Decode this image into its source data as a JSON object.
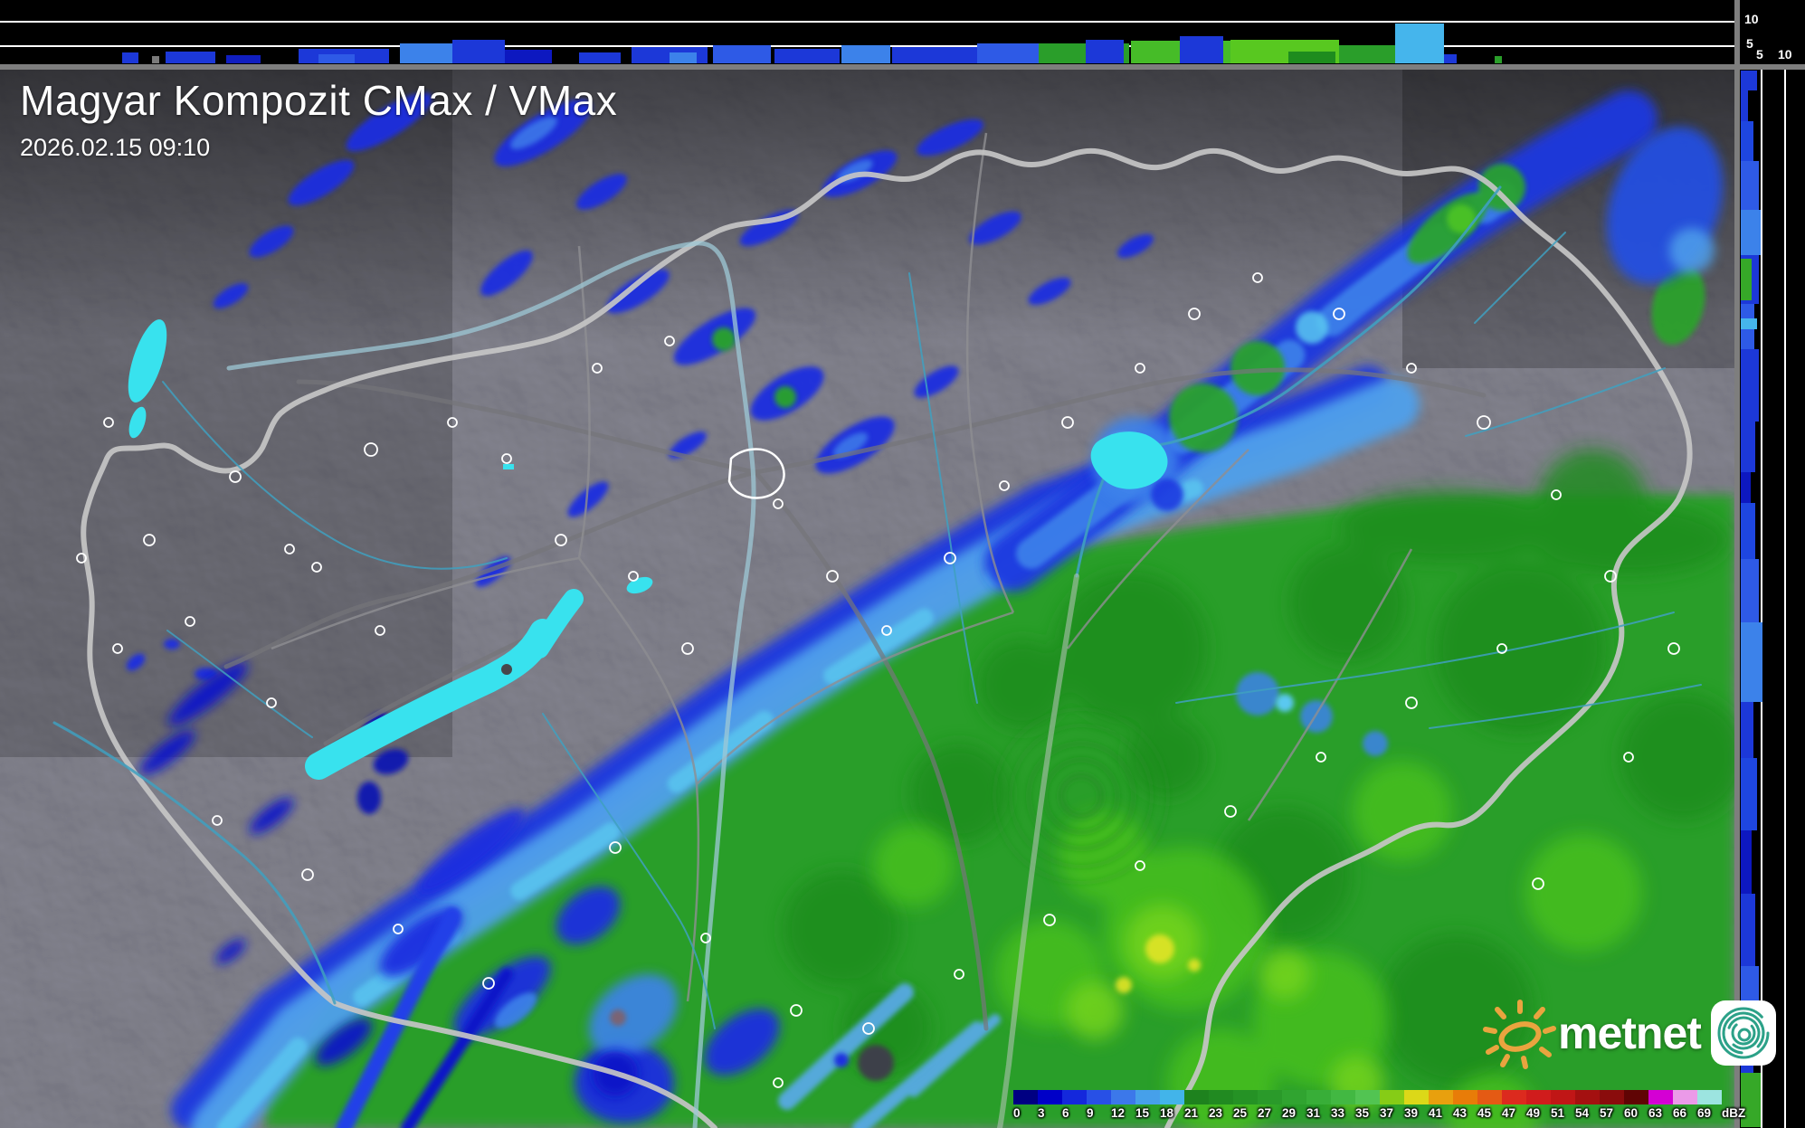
{
  "header": {
    "title": "Magyar Kompozit CMax / VMax",
    "datetime": "2026.02.15 09:10"
  },
  "profile_axes": {
    "top_strip_height_labels": [
      "10",
      "5"
    ],
    "right_strip_height_labels": [
      "5",
      "10"
    ]
  },
  "colorbar": {
    "unit": "dBZ",
    "ticks": [
      "0",
      "3",
      "6",
      "9",
      "12",
      "15",
      "18",
      "21",
      "23",
      "25",
      "27",
      "29",
      "31",
      "33",
      "35",
      "37",
      "39",
      "41",
      "43",
      "45",
      "47",
      "49",
      "51",
      "54",
      "57",
      "60",
      "63",
      "66",
      "69"
    ],
    "colors": [
      "#000082",
      "#0000c8",
      "#1428dc",
      "#2850e6",
      "#3c78ea",
      "#46a0ea",
      "#42b4ea",
      "#1e821e",
      "#218a21",
      "#259225",
      "#2a9a2a",
      "#30a430",
      "#38ae38",
      "#42b842",
      "#52c452",
      "#86cc16",
      "#dcd818",
      "#e8a00e",
      "#e87c08",
      "#e45a14",
      "#dc2a1e",
      "#d01c1c",
      "#c01616",
      "#a41010",
      "#8a0c0c",
      "#600404",
      "#d400d4",
      "#eb9ae8",
      "#9ce4e0"
    ]
  },
  "logo": {
    "text": "metnet",
    "sun_color": "#e9a43f",
    "spiral_color": "#2ca188"
  },
  "map_palette": {
    "terrain": "#48484c",
    "country_border": "#c6c6c6",
    "county_border": "#8e8e92",
    "river": "#3fa0c0",
    "lake": "#38e2ee",
    "town_outline": "#ffffff",
    "echo_blue": "#1c38d8",
    "echo_light_blue": "#4fa0ec",
    "echo_sky": "#45b5ec",
    "echo_green": "#2aa42a",
    "echo_bright_green": "#74d41a",
    "echo_yellow": "#e2e428"
  },
  "top_profile": {
    "segments": [
      [
        135,
        18,
        12,
        "#1c38d8"
      ],
      [
        168,
        8,
        8,
        "#7a7a7a"
      ],
      [
        183,
        55,
        13,
        "#1c38d8"
      ],
      [
        250,
        38,
        9,
        "#101ec0"
      ],
      [
        330,
        100,
        16,
        "#1c38d8"
      ],
      [
        352,
        40,
        10,
        "#2e5ae6"
      ],
      [
        442,
        58,
        22,
        "#3c82ea"
      ],
      [
        500,
        58,
        26,
        "#1c38d8"
      ],
      [
        558,
        52,
        15,
        "#0d18c0"
      ],
      [
        640,
        46,
        12,
        "#1c38d8"
      ],
      [
        698,
        84,
        18,
        "#1c38d8"
      ],
      [
        740,
        30,
        12,
        "#3c82ea"
      ],
      [
        788,
        64,
        20,
        "#2e5ae6"
      ],
      [
        856,
        72,
        16,
        "#1c38d8"
      ],
      [
        930,
        54,
        20,
        "#3c82ea"
      ],
      [
        986,
        96,
        18,
        "#1c38d8"
      ],
      [
        1080,
        68,
        22,
        "#2e5ae6"
      ],
      [
        1148,
        100,
        22,
        "#2a9e2a"
      ],
      [
        1200,
        42,
        26,
        "#1c38d8"
      ],
      [
        1250,
        110,
        25,
        "#46bc28"
      ],
      [
        1304,
        48,
        30,
        "#1c38d8"
      ],
      [
        1360,
        120,
        26,
        "#58c820"
      ],
      [
        1424,
        52,
        13,
        "#1e8c1e"
      ],
      [
        1480,
        62,
        20,
        "#2a9e2a"
      ],
      [
        1542,
        54,
        44,
        "#45b5ec"
      ],
      [
        1596,
        14,
        10,
        "#1c38d8"
      ],
      [
        1652,
        8,
        8,
        "#2a9e2a"
      ]
    ]
  },
  "right_profile": {
    "segments": [
      [
        1,
        22,
        18,
        "#1c38d8"
      ],
      [
        23,
        34,
        8,
        "#1c38d8"
      ],
      [
        57,
        44,
        14,
        "#1e46e0"
      ],
      [
        101,
        54,
        20,
        "#2e5ae6"
      ],
      [
        155,
        50,
        22,
        "#3c82ea"
      ],
      [
        205,
        54,
        20,
        "#1c38d8"
      ],
      [
        209,
        46,
        12,
        "#36a828"
      ],
      [
        259,
        50,
        15,
        "#2e5ae6"
      ],
      [
        275,
        12,
        18,
        "#45b5ec"
      ],
      [
        309,
        80,
        20,
        "#1c38d8"
      ],
      [
        389,
        56,
        16,
        "#1c38d8"
      ],
      [
        445,
        34,
        11,
        "#0d18c0"
      ],
      [
        479,
        62,
        16,
        "#1e46e0"
      ],
      [
        541,
        70,
        20,
        "#2e5ae6"
      ],
      [
        611,
        88,
        24,
        "#3c82ea"
      ],
      [
        699,
        62,
        14,
        "#1c38d8"
      ],
      [
        761,
        80,
        18,
        "#1e46e0"
      ],
      [
        841,
        70,
        12,
        "#0d18c0"
      ],
      [
        911,
        80,
        16,
        "#1c38d8"
      ],
      [
        991,
        60,
        20,
        "#2e5ae6"
      ],
      [
        1051,
        58,
        14,
        "#1c38d8"
      ],
      [
        1109,
        60,
        22,
        "#36a828"
      ]
    ]
  }
}
